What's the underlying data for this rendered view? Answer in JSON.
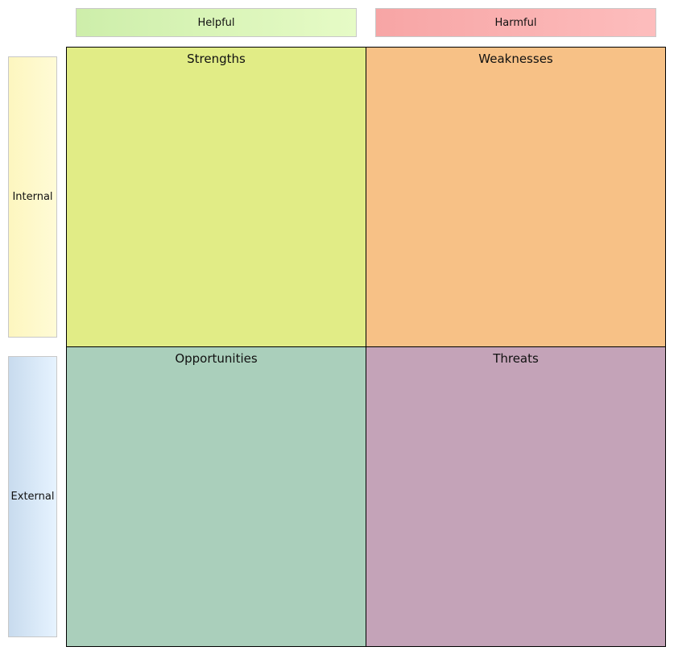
{
  "columns": {
    "helpful": "Helpful",
    "harmful": "Harmful"
  },
  "rows": {
    "internal": "Internal",
    "external": "External"
  },
  "quadrants": {
    "strengths": "Strengths",
    "weaknesses": "Weaknesses",
    "opportunities": "Opportunities",
    "threats": "Threats"
  },
  "colors": {
    "strengths": "#e1ec86",
    "weaknesses": "#f7c186",
    "opportunities": "#aacfbb",
    "threats": "#c4a3b8"
  }
}
